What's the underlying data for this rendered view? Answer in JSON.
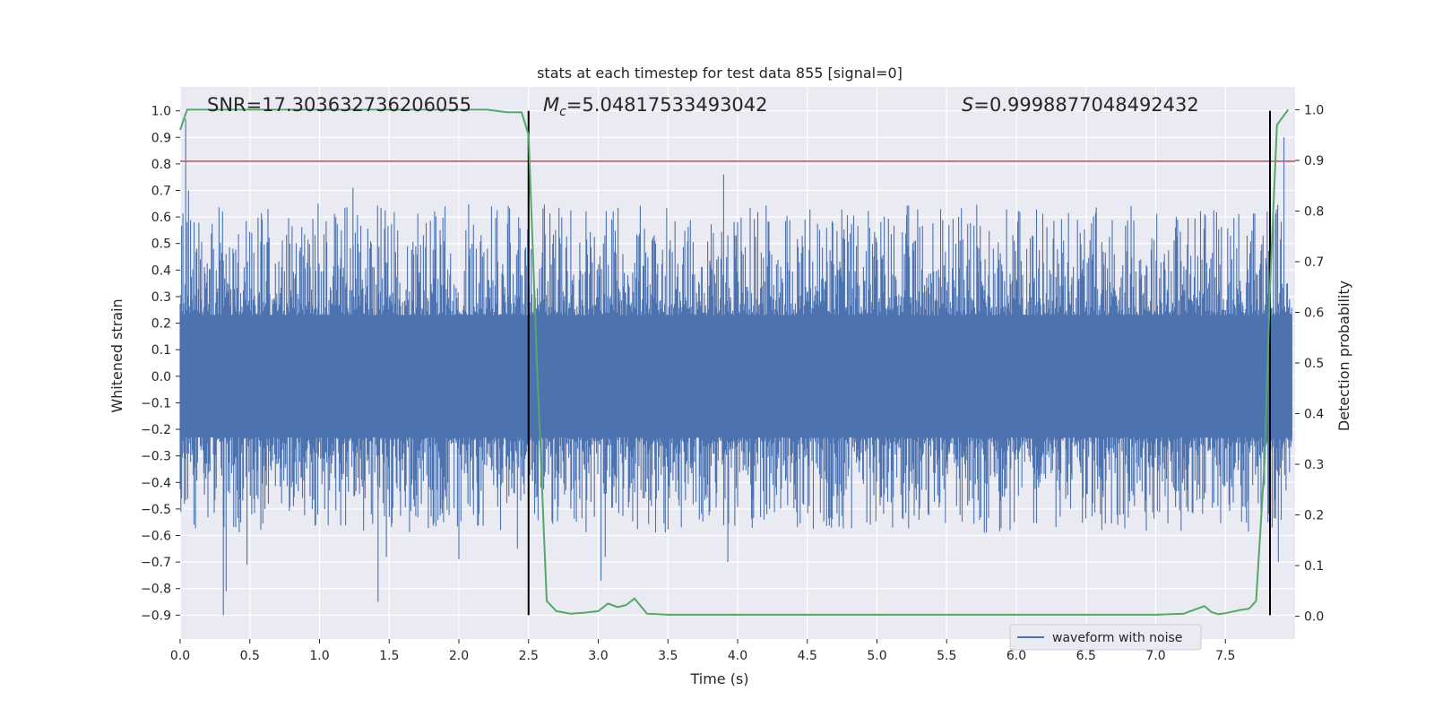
{
  "chart_data": {
    "type": "line",
    "title": "stats at each timestep for test data 855 [signal=0]",
    "xlabel": "Time (s)",
    "ylabel_left": "Whitened strain",
    "ylabel_right": "Detection probability",
    "xlim": [
      0.0,
      8.0
    ],
    "ylim_left": [
      -0.99,
      1.09
    ],
    "ylim_right": [
      -0.045,
      1.045
    ],
    "x_ticks": [
      "0.0",
      "0.5",
      "1.0",
      "1.5",
      "2.0",
      "2.5",
      "3.0",
      "3.5",
      "4.0",
      "4.5",
      "5.0",
      "5.5",
      "6.0",
      "6.5",
      "7.0",
      "7.5"
    ],
    "x_tick_values": [
      0.0,
      0.5,
      1.0,
      1.5,
      2.0,
      2.5,
      3.0,
      3.5,
      4.0,
      4.5,
      5.0,
      5.5,
      6.0,
      6.5,
      7.0,
      7.5
    ],
    "y_left_ticks": [
      "1.0",
      "0.9",
      "0.8",
      "0.7",
      "0.6",
      "0.5",
      "0.4",
      "0.3",
      "0.2",
      "0.1",
      "0.0",
      "−0.1",
      "−0.2",
      "−0.3",
      "−0.4",
      "−0.5",
      "−0.6",
      "−0.7",
      "−0.8",
      "−0.9"
    ],
    "y_left_values": [
      1.0,
      0.9,
      0.8,
      0.7,
      0.6,
      0.5,
      0.4,
      0.3,
      0.2,
      0.1,
      0.0,
      -0.1,
      -0.2,
      -0.3,
      -0.4,
      -0.5,
      -0.6,
      -0.7,
      -0.8,
      -0.9
    ],
    "y_right_ticks": [
      "1.0",
      "0.9",
      "0.8",
      "0.7",
      "0.6",
      "0.5",
      "0.4",
      "0.3",
      "0.2",
      "0.1",
      "0.0"
    ],
    "y_right_values": [
      1.0,
      0.9,
      0.8,
      0.7,
      0.6,
      0.5,
      0.4,
      0.3,
      0.2,
      0.1,
      0.0
    ],
    "annotations": {
      "snr": "SNR=17.303632736206055",
      "mc_sym": "M",
      "mc_sub": "c",
      "mc_val": "=5.04817533493042",
      "s_sym": "S",
      "s_val": "=0.9998877048492432"
    },
    "threshold_left": 0.81,
    "vlines_x": [
      2.5,
      7.82
    ],
    "waveform": {
      "name": "waveform with noise",
      "color": "#4c72b0",
      "core_amplitude": 0.23,
      "spikes": [
        [
          0.04,
          0.97
        ],
        [
          0.06,
          0.7
        ],
        [
          0.1,
          0.58
        ],
        [
          0.31,
          -0.9
        ],
        [
          0.33,
          -0.81
        ],
        [
          0.48,
          -0.71
        ],
        [
          0.63,
          0.63
        ],
        [
          0.99,
          0.65
        ],
        [
          1.24,
          0.71
        ],
        [
          1.42,
          -0.85
        ],
        [
          1.48,
          -0.68
        ],
        [
          2.0,
          -0.69
        ],
        [
          2.42,
          -0.65
        ],
        [
          3.02,
          -0.77
        ],
        [
          3.05,
          -0.68
        ],
        [
          3.9,
          0.76
        ],
        [
          3.93,
          -0.7
        ],
        [
          7.92,
          0.9
        ],
        [
          7.88,
          -0.7
        ],
        [
          7.8,
          0.62
        ]
      ]
    },
    "detection_probability": {
      "color": "#55a868",
      "x": [
        0.0,
        0.05,
        0.1,
        0.5,
        1.0,
        1.5,
        2.0,
        2.2,
        2.35,
        2.45,
        2.5,
        2.56,
        2.63,
        2.7,
        2.8,
        2.9,
        3.0,
        3.07,
        3.14,
        3.2,
        3.26,
        3.35,
        3.5,
        4.0,
        4.5,
        5.0,
        5.5,
        6.0,
        6.5,
        7.0,
        7.2,
        7.3,
        7.35,
        7.4,
        7.45,
        7.5,
        7.6,
        7.67,
        7.72,
        7.78,
        7.82,
        7.87,
        7.95
      ],
      "y": [
        0.96,
        1.0,
        1.0,
        1.0,
        1.0,
        1.0,
        1.0,
        1.0,
        0.995,
        0.995,
        0.95,
        0.5,
        0.03,
        0.01,
        0.005,
        0.007,
        0.01,
        0.025,
        0.018,
        0.022,
        0.035,
        0.005,
        0.003,
        0.003,
        0.003,
        0.003,
        0.003,
        0.003,
        0.003,
        0.003,
        0.005,
        0.015,
        0.02,
        0.008,
        0.004,
        0.006,
        0.012,
        0.015,
        0.03,
        0.3,
        0.65,
        0.97,
        1.0
      ]
    },
    "legend": {
      "placement": "lower-right",
      "label": "waveform with noise"
    },
    "grid": true
  },
  "colors": {
    "axes_bg": "#eaeaf2",
    "grid": "#ffffff",
    "waveform": "#4c72b0",
    "probability": "#55a868",
    "threshold": "#c44e52",
    "vline": "#000000"
  }
}
